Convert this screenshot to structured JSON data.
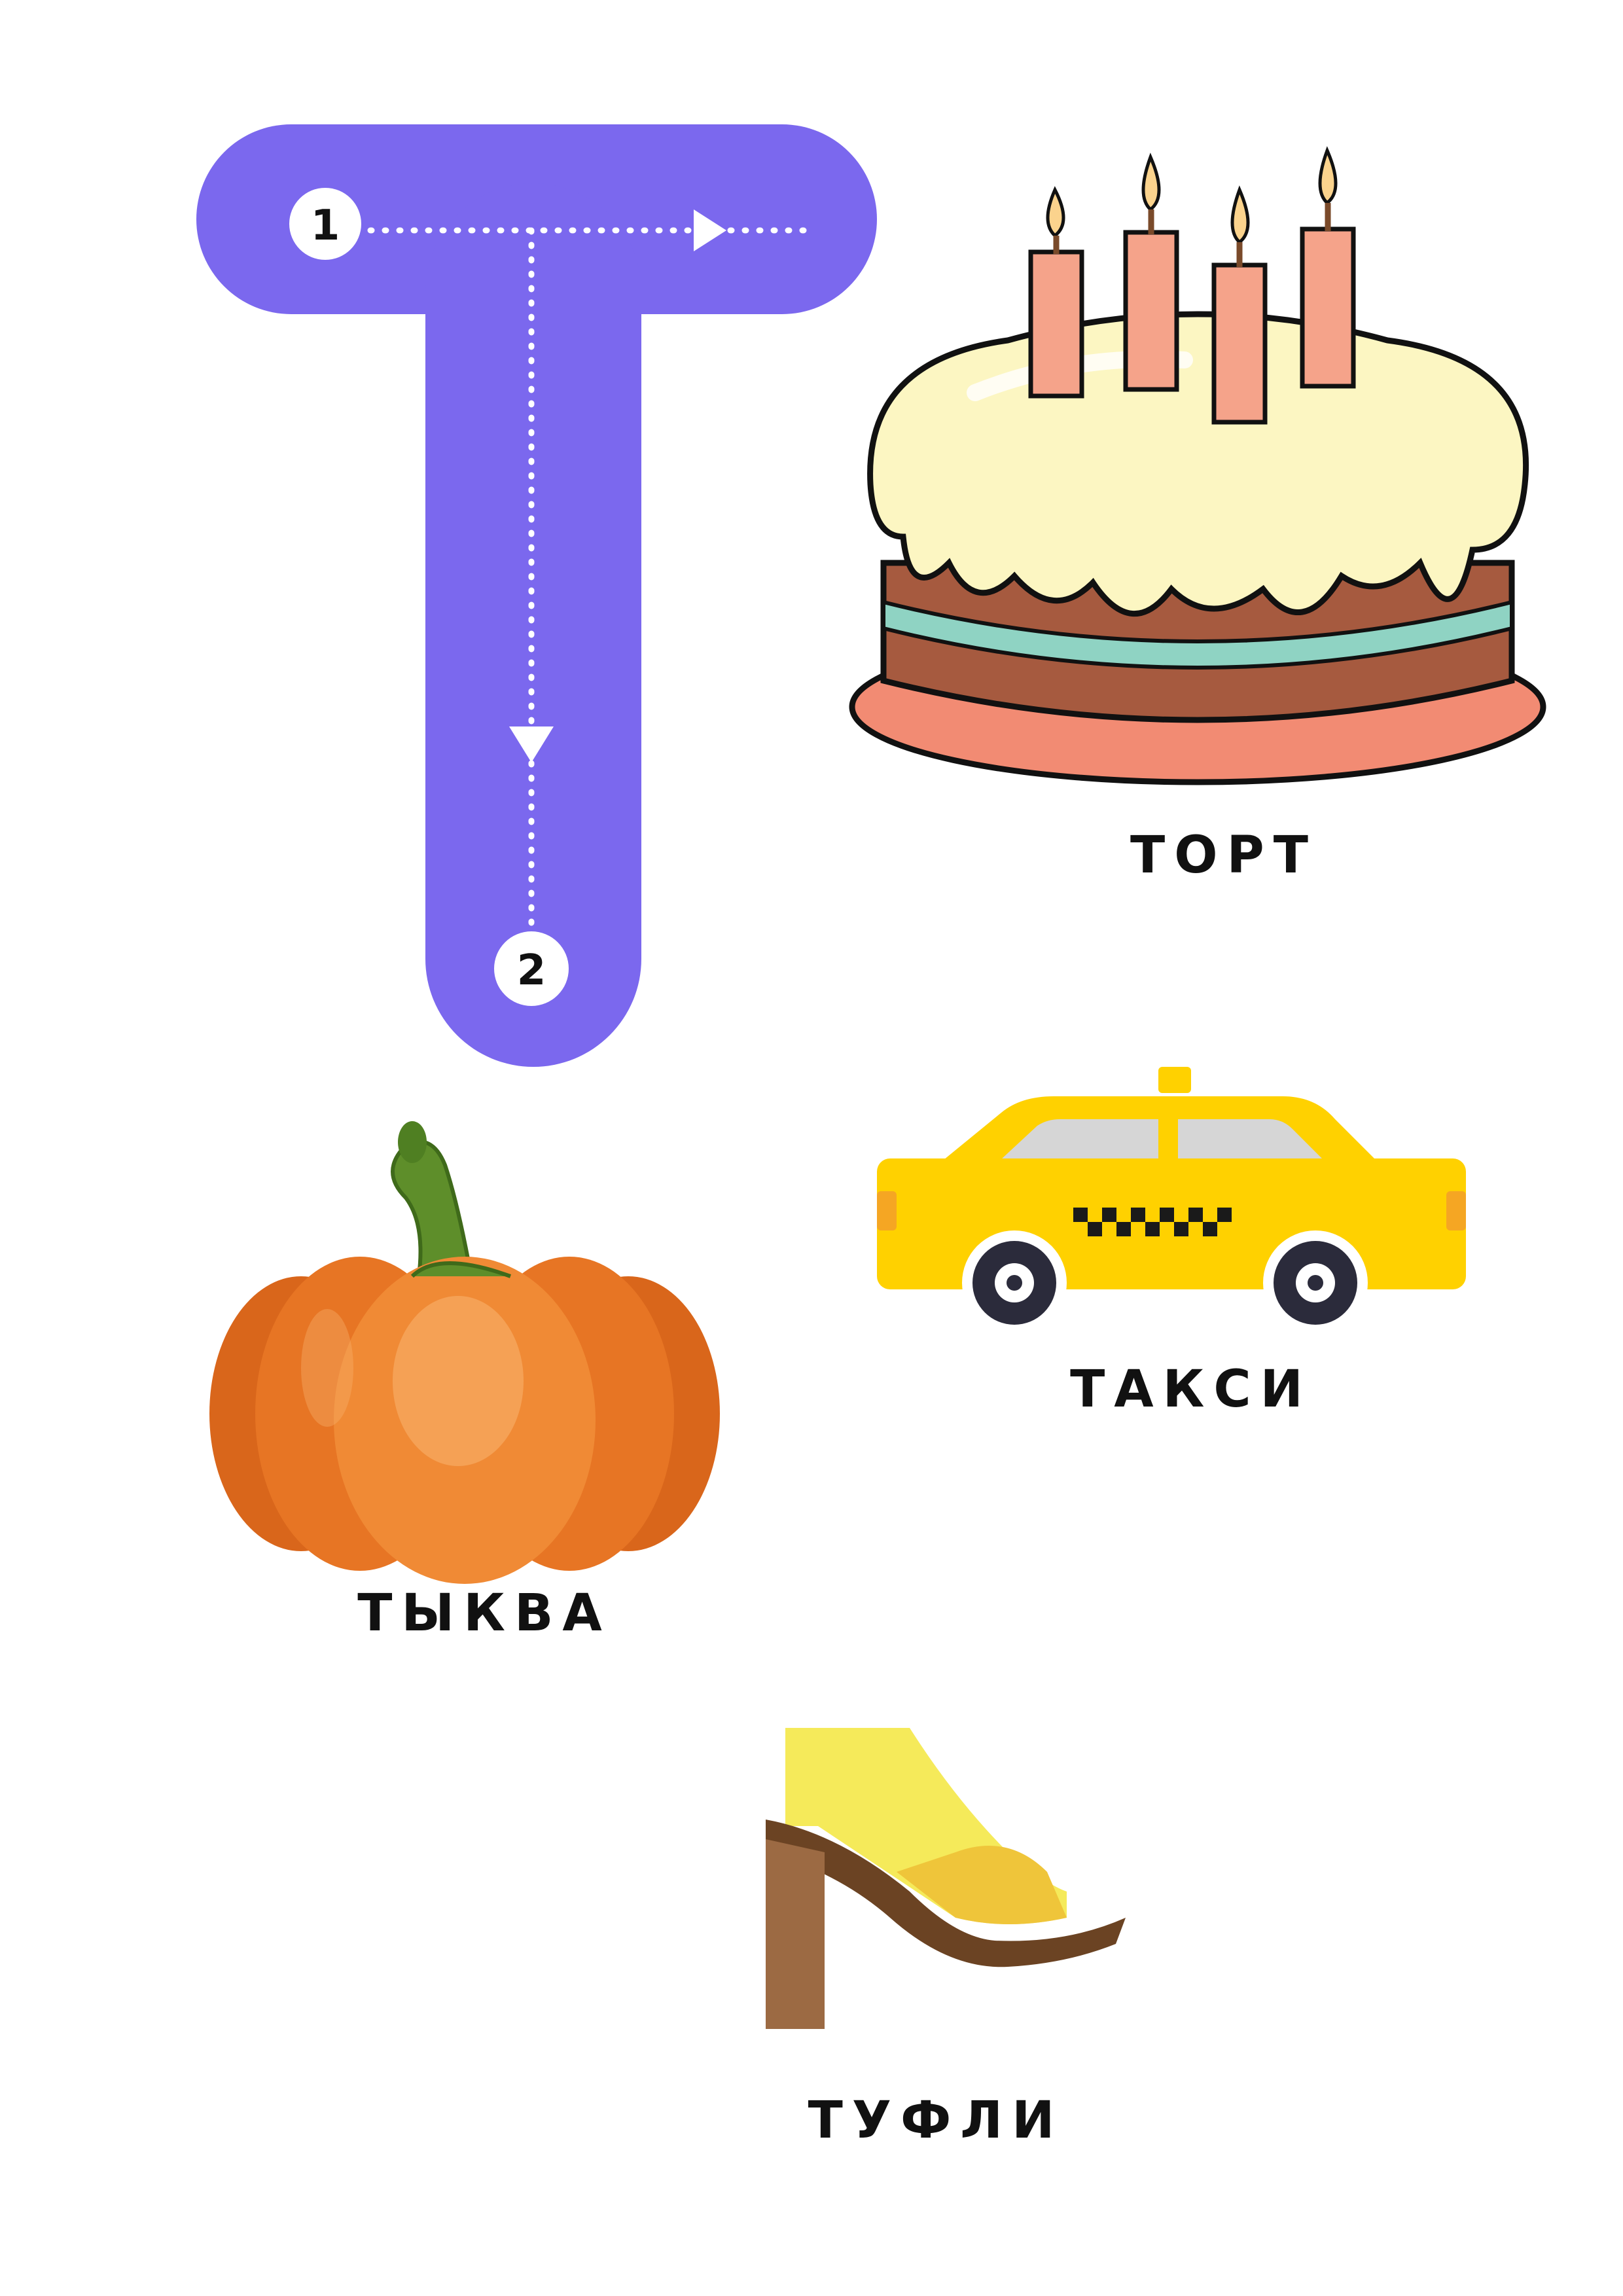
{
  "letter": {
    "glyph": "Т",
    "color": "#7B68EE",
    "stroke_steps": [
      "1",
      "2"
    ]
  },
  "items": [
    {
      "word": "ТОРТ",
      "icon": "cake-icon"
    },
    {
      "word": "ТАКСИ",
      "icon": "taxi-icon"
    },
    {
      "word": "ТЫКВА",
      "icon": "pumpkin-icon"
    },
    {
      "word": "ТУФЛИ",
      "icon": "shoe-icon"
    }
  ]
}
